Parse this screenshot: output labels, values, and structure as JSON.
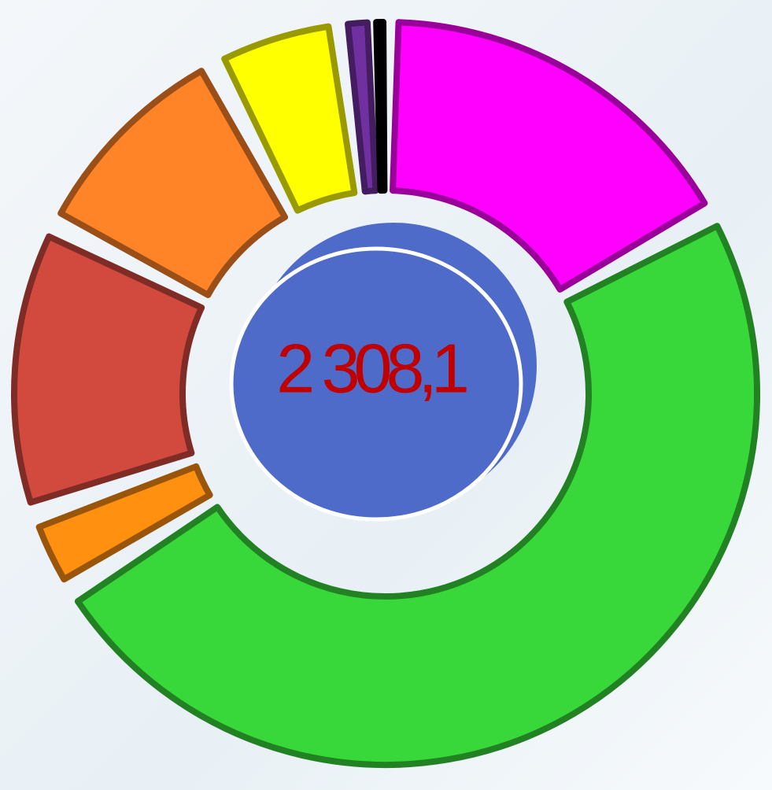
{
  "chart_data": {
    "type": "donut",
    "center_label": "2 308,1",
    "categories": [
      null,
      null,
      null,
      null,
      null,
      null,
      null,
      null
    ],
    "values": [
      17,
      49.1,
      3.6,
      12.8,
      9.8,
      5.8,
      1.4,
      0.5
    ],
    "colors": [
      "#ff00ff",
      "#39d83a",
      "#ff9010",
      "#d24a3e",
      "#ff8427",
      "#ffff00",
      "#7030a0",
      "#000000"
    ],
    "center_color": "#4f6bc9"
  }
}
